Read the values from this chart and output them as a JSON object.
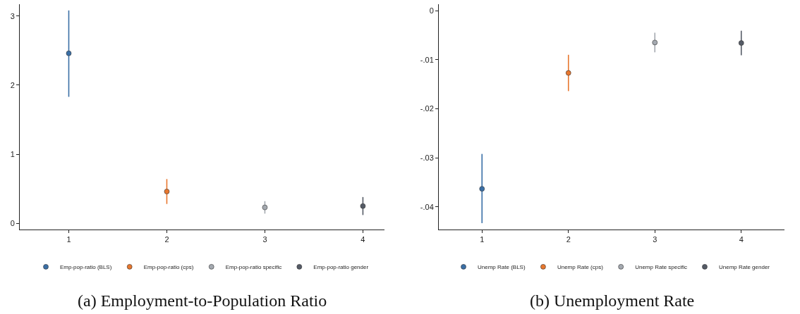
{
  "chart_data": [
    {
      "type": "scatter",
      "annotations": [
        "(a) Employment-to-Population Ratio"
      ],
      "xlim": [
        0.5,
        4.22
      ],
      "xticks": [
        1,
        2,
        3,
        4
      ],
      "ylim": [
        -0.09,
        3.17
      ],
      "yticks": [
        0,
        1,
        2,
        3
      ],
      "grid": false,
      "legend": "bottom",
      "marker": "circle",
      "series": [
        {
          "name": "Emp-pop-ratio (BLS)",
          "color": "#3a6fa6",
          "x": [
            1
          ],
          "values": [
            2.46
          ],
          "errors": [
            [
              1.83,
              3.08
            ]
          ]
        },
        {
          "name": "Emp-pop-ratio (cps)",
          "color": "#e8772e",
          "x": [
            2
          ],
          "values": [
            0.46
          ],
          "errors": [
            [
              0.28,
              0.64
            ]
          ]
        },
        {
          "name": "Emp-pop-ratio specific",
          "color": "#a4a9b0",
          "x": [
            3
          ],
          "values": [
            0.23
          ],
          "errors": [
            [
              0.14,
              0.32
            ]
          ]
        },
        {
          "name": "Emp-pop-ratio gender",
          "color": "#555b66",
          "x": [
            4
          ],
          "values": [
            0.25
          ],
          "errors": [
            [
              0.12,
              0.38
            ]
          ]
        }
      ]
    },
    {
      "type": "scatter",
      "annotations": [
        "(b) Unemployment Rate"
      ],
      "xlim": [
        0.5,
        4.5
      ],
      "xticks": [
        1,
        2,
        3,
        4
      ],
      "ylim": [
        -0.0446,
        0.0013
      ],
      "yticks": [
        {
          "value": 0,
          "label": "0"
        },
        {
          "value": -0.01,
          "label": "-.01"
        },
        {
          "value": -0.02,
          "label": "-.02"
        },
        {
          "value": -0.03,
          "label": "-.03"
        },
        {
          "value": -0.04,
          "label": "-.04"
        }
      ],
      "grid": false,
      "legend": "bottom",
      "marker": "circle",
      "series": [
        {
          "name": "Unemp Rate (BLS)",
          "color": "#3a6fa6",
          "x": [
            1
          ],
          "values": [
            -0.0363
          ],
          "errors": [
            [
              -0.0433,
              -0.0292
            ]
          ]
        },
        {
          "name": "Unemp Rate (cps)",
          "color": "#e8772e",
          "x": [
            2
          ],
          "values": [
            -0.0127
          ],
          "errors": [
            [
              -0.0164,
              -0.009
            ]
          ]
        },
        {
          "name": "Unemp Rate specific",
          "color": "#a4a9b0",
          "x": [
            3
          ],
          "values": [
            -0.0065
          ],
          "errors": [
            [
              -0.0085,
              -0.0045
            ]
          ]
        },
        {
          "name": "Unemp Rate gender",
          "color": "#555b66",
          "x": [
            4
          ],
          "values": [
            -0.0066
          ],
          "errors": [
            [
              -0.0091,
              -0.0041
            ]
          ]
        }
      ]
    }
  ]
}
